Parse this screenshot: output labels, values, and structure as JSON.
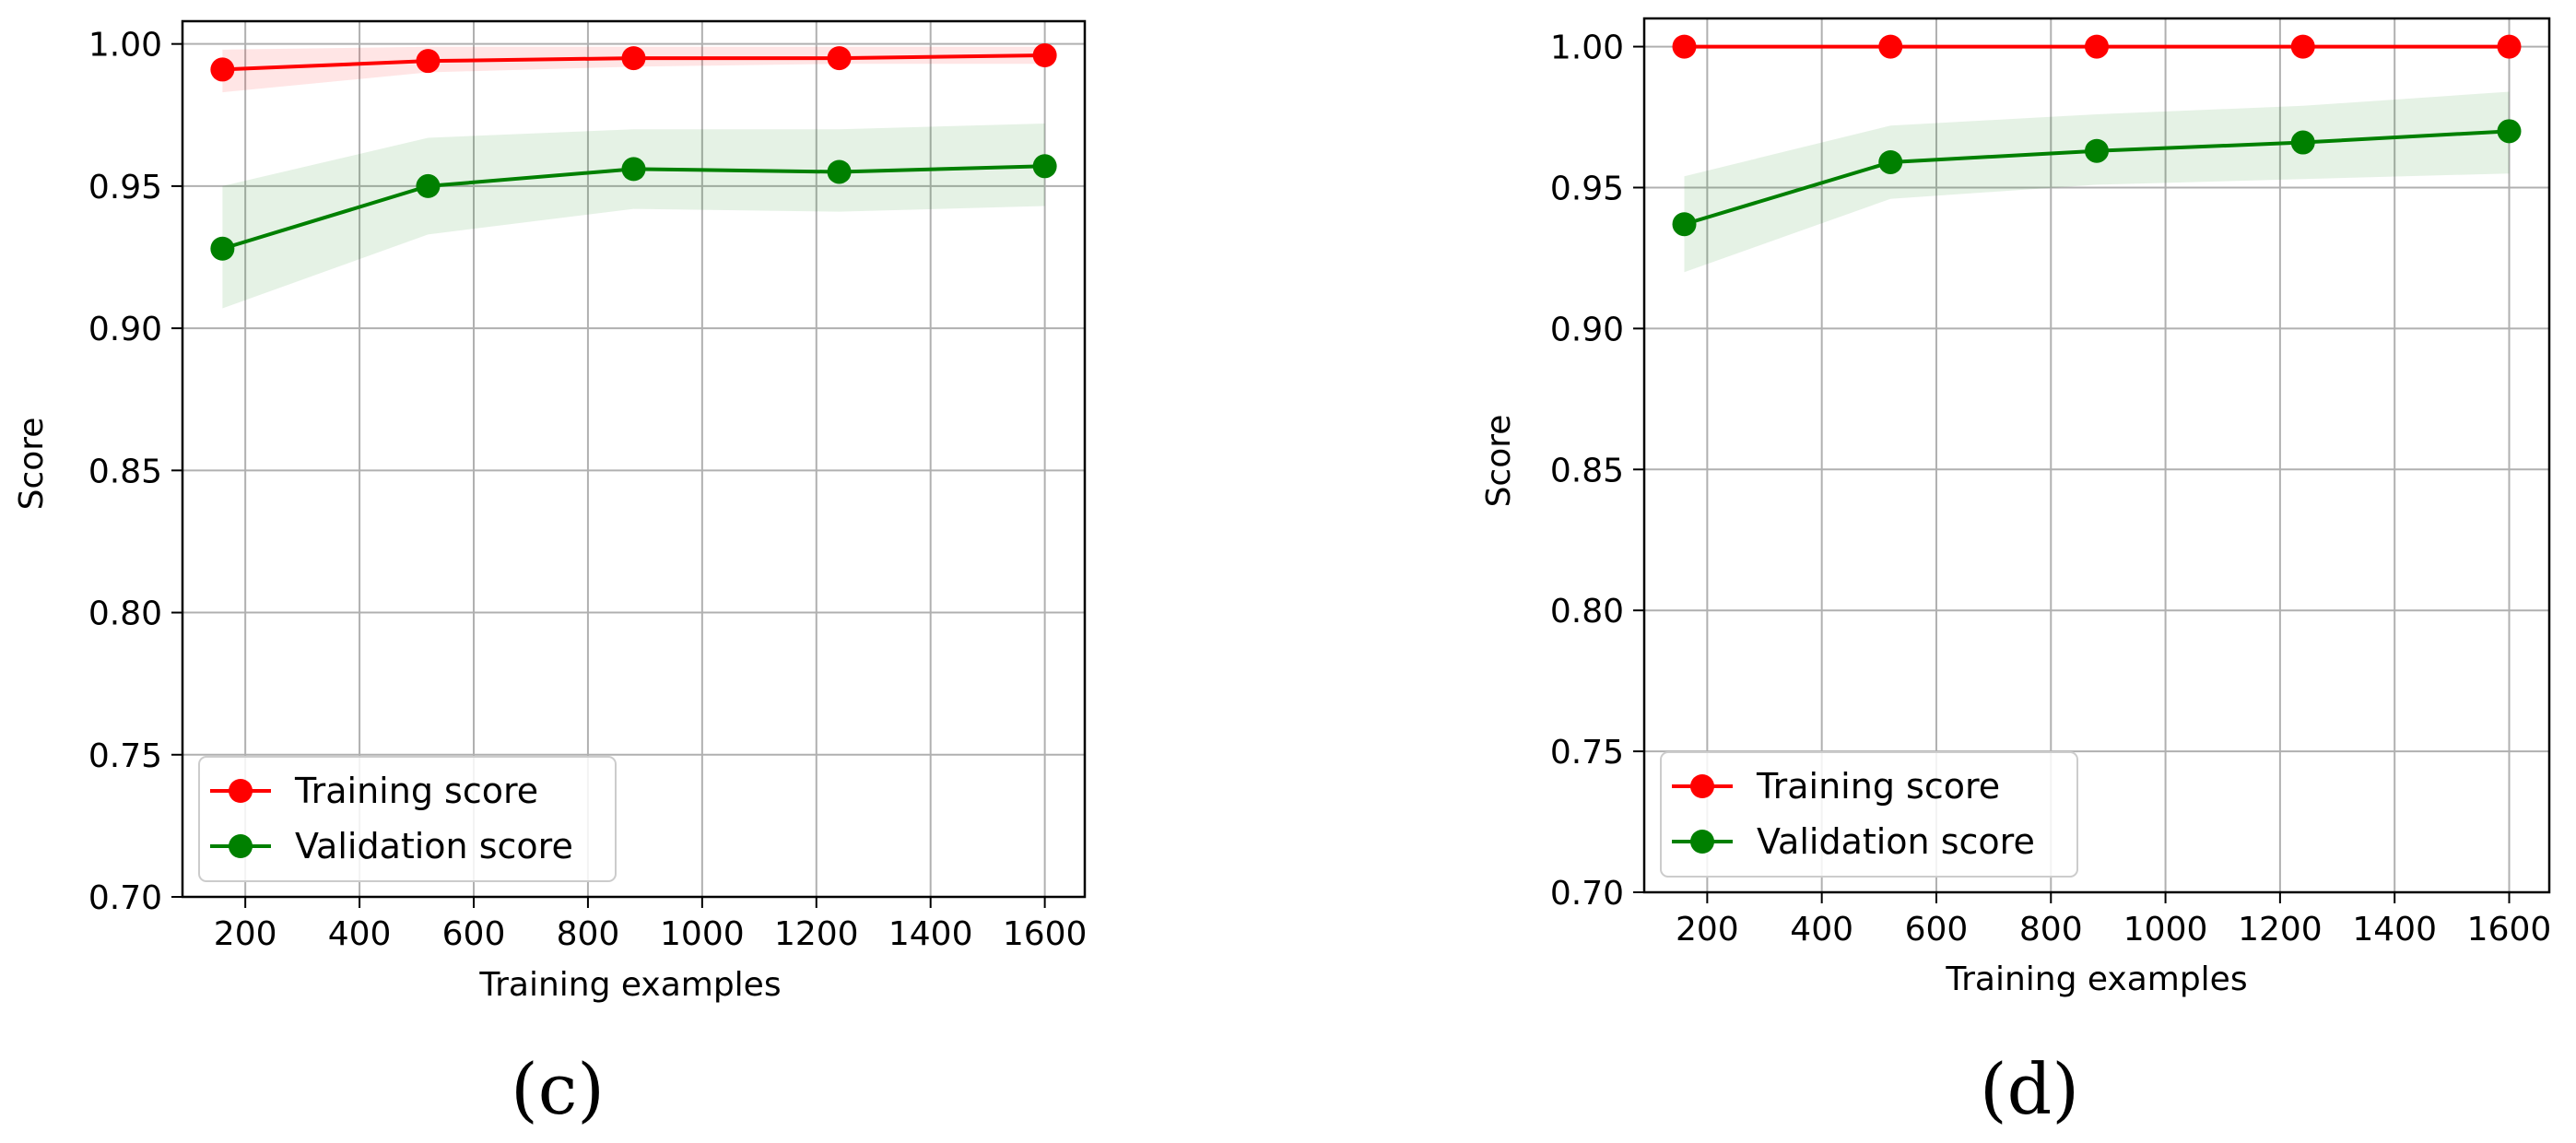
{
  "chart_data": [
    {
      "type": "line",
      "caption": "(c)",
      "xlabel": "Training examples",
      "ylabel": "Score",
      "xlim": [
        90,
        1670
      ],
      "ylim": [
        0.7,
        1.008
      ],
      "xticks": [
        200,
        400,
        600,
        800,
        1000,
        1200,
        1400,
        1600
      ],
      "yticks": [
        0.7,
        0.75,
        0.8,
        0.85,
        0.9,
        0.95,
        1.0
      ],
      "ytick_labels": [
        "0.70",
        "0.75",
        "0.80",
        "0.85",
        "0.90",
        "0.95",
        "1.00"
      ],
      "grid": true,
      "legend": "lower-left",
      "x": [
        160,
        520,
        880,
        1240,
        1600
      ],
      "series": [
        {
          "name": "Training score",
          "color": "#ff0000",
          "values": [
            0.991,
            0.994,
            0.995,
            0.995,
            0.996
          ],
          "band_lower": [
            0.983,
            0.99,
            0.992,
            0.993,
            0.993
          ],
          "band_upper": [
            0.998,
            0.999,
            0.999,
            0.999,
            0.999
          ],
          "band_color": "#ff0000"
        },
        {
          "name": "Validation score",
          "color": "#008000",
          "values": [
            0.928,
            0.95,
            0.956,
            0.955,
            0.957
          ],
          "band_lower": [
            0.907,
            0.933,
            0.942,
            0.941,
            0.943
          ],
          "band_upper": [
            0.95,
            0.967,
            0.97,
            0.97,
            0.972
          ],
          "band_color": "#008000"
        }
      ]
    },
    {
      "type": "line",
      "caption": "(d)",
      "xlabel": "Training examples",
      "ylabel": "Score",
      "xlim": [
        90,
        1670
      ],
      "ylim": [
        0.7,
        1.01
      ],
      "xticks": [
        200,
        400,
        600,
        800,
        1000,
        1200,
        1400,
        1600
      ],
      "yticks": [
        0.7,
        0.75,
        0.8,
        0.85,
        0.9,
        0.95,
        1.0
      ],
      "ytick_labels": [
        "0.70",
        "0.75",
        "0.80",
        "0.85",
        "0.90",
        "0.95",
        "1.00"
      ],
      "grid": true,
      "legend": "lower-left",
      "x": [
        160,
        520,
        880,
        1240,
        1600
      ],
      "series": [
        {
          "name": "Training score",
          "color": "#ff0000",
          "values": [
            1.0,
            1.0,
            1.0,
            1.0,
            1.0
          ],
          "band_lower": [
            1.0,
            1.0,
            1.0,
            1.0,
            1.0
          ],
          "band_upper": [
            1.0,
            1.0,
            1.0,
            1.0,
            1.0
          ],
          "band_color": "#ff0000"
        },
        {
          "name": "Validation score",
          "color": "#008000",
          "values": [
            0.937,
            0.959,
            0.963,
            0.966,
            0.97
          ],
          "band_lower": [
            0.92,
            0.946,
            0.951,
            0.953,
            0.955
          ],
          "band_upper": [
            0.954,
            0.972,
            0.976,
            0.979,
            0.984
          ],
          "band_color": "#008000"
        }
      ]
    }
  ]
}
